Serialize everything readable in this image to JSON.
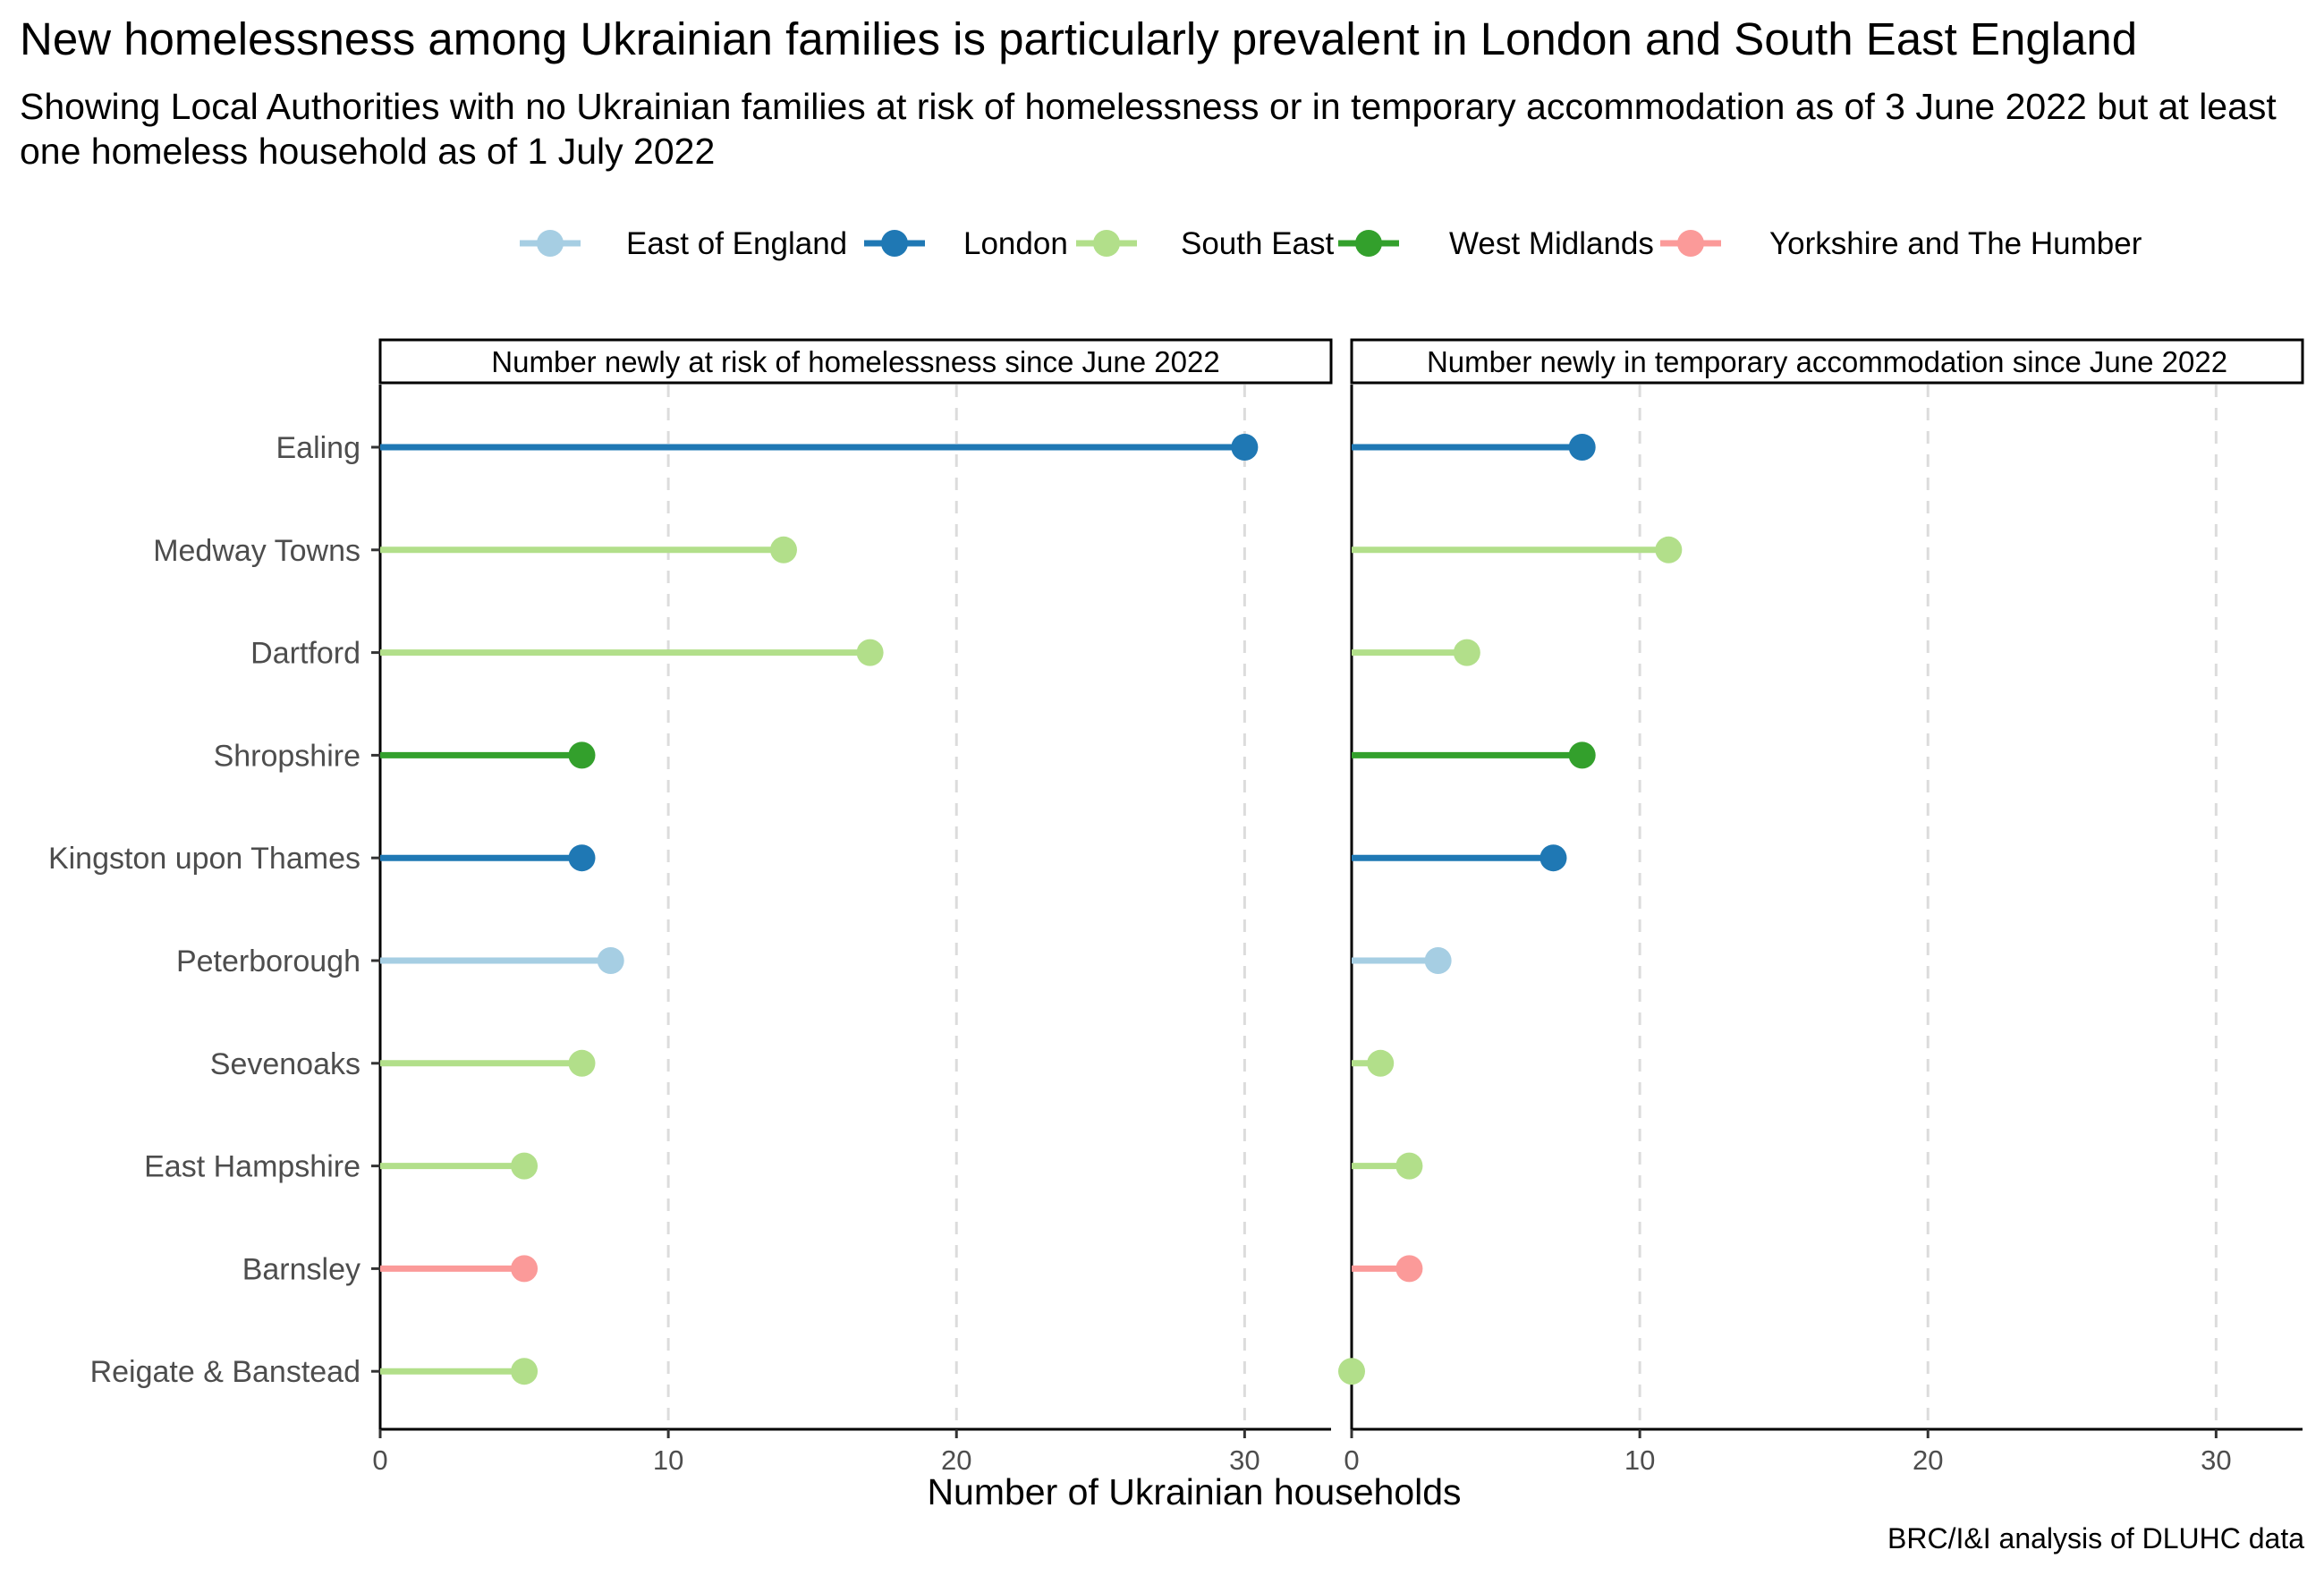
{
  "chart_data": {
    "type": "lollipop",
    "title": "New homelessness among Ukrainian families is particularly prevalent in London and South East England",
    "subtitle": "Showing Local Authorities with no Ukrainian families at risk of homelessness or in temporary accommodation as of 3 June 2022 but at least one homeless household as of 1 July 2022",
    "caption": "BRC/I&I analysis of DLUHC data",
    "xlabel": "Number of Ukrainian households",
    "xlim": [
      0,
      33
    ],
    "xticks": [
      0,
      10,
      20,
      30
    ],
    "grid": "vertical dashed at x ticks",
    "legend_position": "top",
    "legend": [
      {
        "name": "East of England",
        "color": "#a6cee3"
      },
      {
        "name": "London",
        "color": "#1f78b4"
      },
      {
        "name": "South East",
        "color": "#b2df8a"
      },
      {
        "name": "West Midlands",
        "color": "#33a02c"
      },
      {
        "name": "Yorkshire and The Humber",
        "color": "#fb9a99"
      }
    ],
    "categories": [
      "Ealing",
      "Medway Towns",
      "Dartford",
      "Shropshire",
      "Kingston upon Thames",
      "Peterborough",
      "Sevenoaks",
      "East Hampshire",
      "Barnsley",
      "Reigate & Banstead"
    ],
    "category_region": [
      "London",
      "South East",
      "South East",
      "West Midlands",
      "London",
      "East of England",
      "South East",
      "South East",
      "Yorkshire and The Humber",
      "South East"
    ],
    "panels": [
      {
        "title": "Number newly at risk of homelessness since June 2022",
        "values": [
          30,
          14,
          17,
          7,
          7,
          8,
          7,
          5,
          5,
          5
        ]
      },
      {
        "title": "Number newly in temporary accommodation since June 2022",
        "values": [
          8,
          11,
          4,
          8,
          7,
          3,
          1,
          2,
          2,
          0
        ]
      }
    ]
  }
}
